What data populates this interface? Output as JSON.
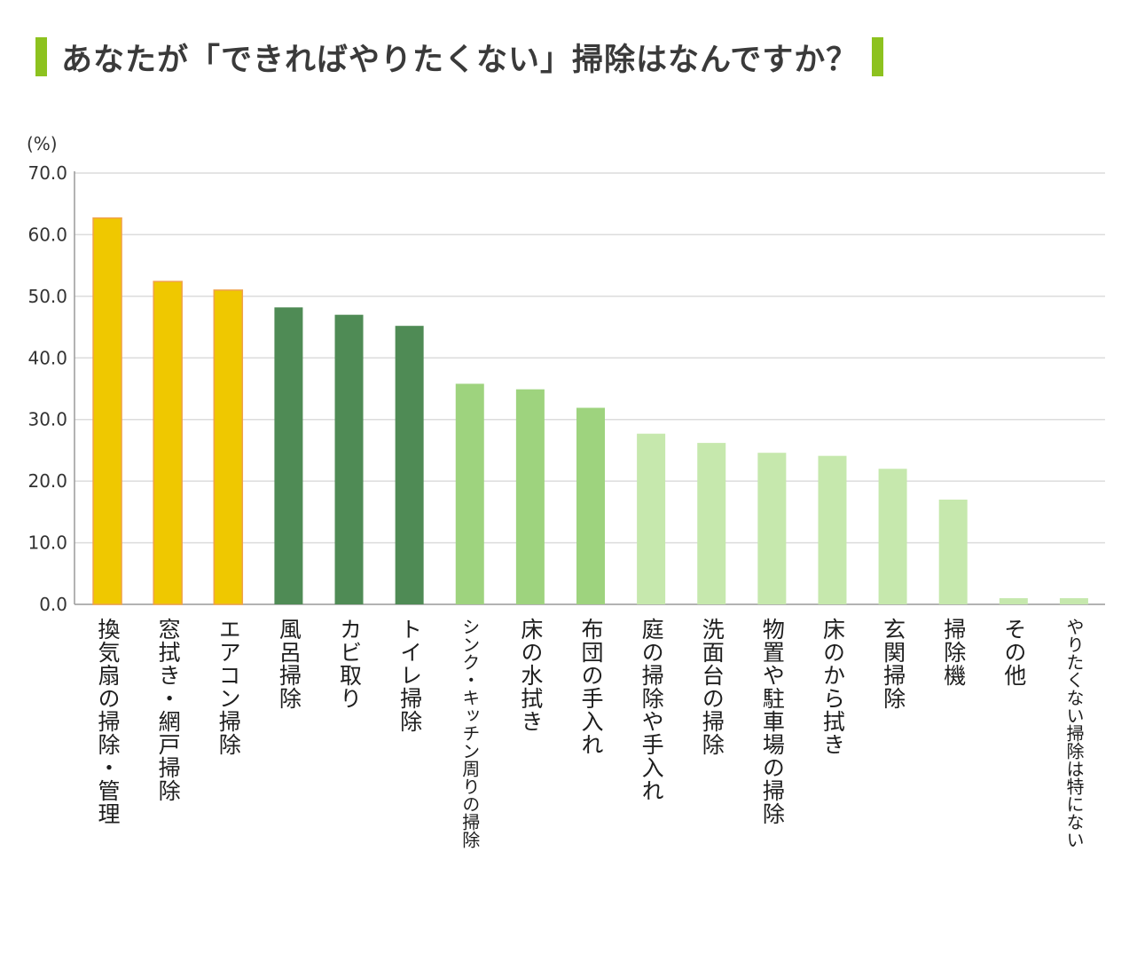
{
  "title": "あなたが「できればやりたくない」掃除はなんですか？",
  "colors": {
    "accent": "#8dc21f",
    "top3": "#efc800",
    "top3_border": "#f0a24a",
    "dark_green": "#4f8b55",
    "mid_green": "#9ed37e",
    "light_green": "#c6e8ad",
    "grid": "#dcdcdc",
    "axis": "#9a9a9a"
  },
  "chart_data": {
    "type": "bar",
    "unit_label": "(%)",
    "ylim": [
      0,
      70
    ],
    "yticks": [
      "0.0",
      "10.0",
      "20.0",
      "30.0",
      "40.0",
      "50.0",
      "60.0",
      "70.0"
    ],
    "grid": true,
    "categories": [
      "換気扇の掃除・管理",
      "窓拭き・網戸掃除",
      "エアコン掃除",
      "風呂掃除",
      "カビ取り",
      "トイレ掃除",
      "シンク・キッチン周りの掃除",
      "床の水拭き",
      "布団の手入れ",
      "庭の掃除や手入れ",
      "洗面台の掃除",
      "物置や駐車場の掃除",
      "床のから拭き",
      "玄関掃除",
      "掃除機",
      "その他",
      "やりたくない掃除は特にない"
    ],
    "values": [
      62.7,
      52.4,
      51.0,
      48.2,
      47.0,
      45.2,
      35.8,
      34.9,
      31.9,
      27.7,
      26.2,
      24.6,
      24.1,
      22.0,
      17.0,
      1.0,
      1.0
    ],
    "bar_colors": [
      "top3",
      "top3",
      "top3",
      "dark_green",
      "dark_green",
      "dark_green",
      "mid_green",
      "mid_green",
      "mid_green",
      "light_green",
      "light_green",
      "light_green",
      "light_green",
      "light_green",
      "light_green",
      "light_green",
      "light_green"
    ]
  }
}
